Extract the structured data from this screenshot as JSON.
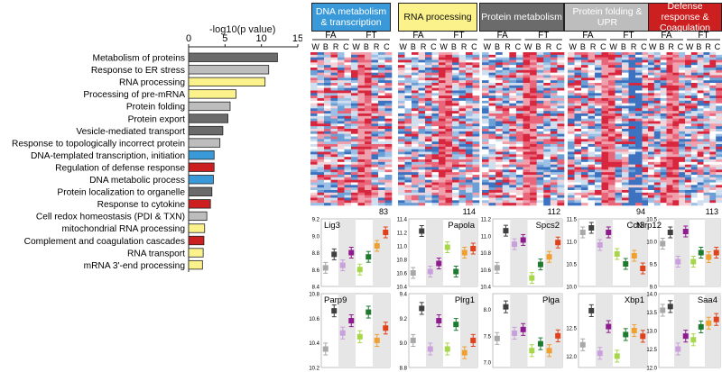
{
  "bar_chart": {
    "type": "bar",
    "orientation": "horizontal",
    "xlabel": "-log10(p value)",
    "xticks": [
      "0",
      "5",
      "10",
      "15"
    ],
    "xlim": [
      0,
      15
    ],
    "categories": [
      "Metabolism of proteins",
      "Response to ER stress",
      "RNA processing",
      "Processing of pre-mRNA",
      "Protein folding",
      "Protein export",
      "Vesicle-mediated transport",
      "Response to topologically incorrect protein",
      "DNA-templated transcription, initiation",
      "Regulation of defense response",
      "DNA metabolic process",
      "Protein localization to organelle",
      "Response to cytokine",
      "Cell redox homeostasis (PDI & TXN)",
      "mitochondrial RNA processing",
      "Complement and coagulation cascades",
      "RNA transport",
      "mRNA 3'-end processing"
    ],
    "values": [
      12.2,
      11.0,
      10.5,
      6.5,
      5.7,
      5.4,
      4.7,
      4.3,
      3.5,
      3.5,
      3.4,
      3.2,
      3.0,
      2.5,
      2.2,
      2.1,
      2.0,
      1.9
    ],
    "bar_colors": [
      "#6b6b6b",
      "#bdbdbd",
      "#fbf28c",
      "#fbf28c",
      "#bdbdbd",
      "#6b6b6b",
      "#6b6b6b",
      "#bdbdbd",
      "#3a9ad9",
      "#cc1f1f",
      "#3a9ad9",
      "#6b6b6b",
      "#cc1f1f",
      "#bdbdbd",
      "#fbf28c",
      "#cc1f1f",
      "#fbf28c",
      "#fbf28c"
    ]
  },
  "heatmaps": [
    {
      "title": "DNA metabolism & transcription",
      "color": "#3a9ad9",
      "count": "83"
    },
    {
      "title": "RNA processing",
      "color": "#fbf28c",
      "count": "114"
    },
    {
      "title": "Protein metabolism",
      "color": "#6b6b6b",
      "count": "112"
    },
    {
      "title": "Protein folding & UPR",
      "color": "#bdbdbd",
      "count": "94"
    },
    {
      "title": "Defense response & Coagulation",
      "color": "#cc1f1f",
      "count": "113"
    }
  ],
  "heatmap_labels": {
    "group1": "FA",
    "group2": "FT",
    "tissues": [
      "W",
      "B",
      "R",
      "C"
    ]
  },
  "gene_panels": [
    {
      "gene": "Lig3",
      "yticks": [
        "9.2",
        "9.0",
        "8.8",
        "8.6",
        "8.4"
      ],
      "ylim": [
        8.4,
        9.2
      ],
      "values": [
        8.62,
        8.78,
        8.65,
        8.8,
        8.6,
        8.75,
        8.88,
        9.04
      ]
    },
    {
      "gene": "Papola",
      "yticks": [
        "11.4",
        "11.2",
        "11.0",
        "10.8",
        "10.6",
        "10.4"
      ],
      "ylim": [
        10.4,
        11.4
      ],
      "values": [
        10.6,
        11.22,
        10.62,
        10.74,
        10.98,
        10.62,
        10.9,
        10.96
      ]
    },
    {
      "gene": "Spcs2",
      "yticks": [
        "11.2",
        "11.0",
        "10.8",
        "10.6",
        "10.4"
      ],
      "ylim": [
        10.4,
        11.2
      ],
      "values": [
        10.62,
        11.06,
        10.9,
        10.95,
        10.5,
        10.66,
        10.75,
        10.92
      ]
    },
    {
      "gene": "Cct3",
      "yticks": [
        "11.5",
        "11.0",
        "10.5",
        "10.0"
      ],
      "ylim": [
        10.0,
        11.5
      ],
      "values": [
        11.2,
        11.3,
        10.92,
        11.2,
        10.72,
        10.5,
        10.68,
        10.4
      ]
    },
    {
      "gene": "Nlrp12",
      "yticks": [
        "10.5",
        "10.0",
        "9.5",
        "9.0"
      ],
      "ylim": [
        9.0,
        10.5
      ],
      "values": [
        9.95,
        10.2,
        9.55,
        10.22,
        9.55,
        9.75,
        9.65,
        9.75
      ]
    },
    {
      "gene": "Parp9",
      "yticks": [
        "10.8",
        "10.6",
        "10.4",
        "10.2"
      ],
      "ylim": [
        10.2,
        10.8
      ],
      "values": [
        10.35,
        10.66,
        10.48,
        10.58,
        10.45,
        10.65,
        10.42,
        10.52
      ]
    },
    {
      "gene": "Plrg1",
      "yticks": [
        "9.4",
        "9.2",
        "9.0",
        "8.8"
      ],
      "ylim": [
        8.8,
        9.4
      ],
      "values": [
        9.02,
        9.28,
        8.95,
        9.18,
        8.95,
        9.15,
        8.92,
        9.02
      ]
    },
    {
      "gene": "Plga",
      "yticks": [
        "8.0",
        "7.5",
        "7.0"
      ],
      "ylim": [
        6.9,
        8.3
      ],
      "values": [
        7.45,
        8.05,
        7.55,
        7.62,
        7.22,
        7.35,
        7.22,
        7.5
      ]
    },
    {
      "gene": "Xbp1",
      "yticks": [
        "12.5",
        "12.0"
      ],
      "ylim": [
        11.8,
        13.1
      ],
      "values": [
        12.2,
        12.8,
        12.05,
        12.52,
        12.0,
        12.38,
        12.45,
        12.35
      ]
    },
    {
      "gene": "Saa4",
      "yticks": [
        "14.0",
        "13.5",
        "13.0",
        "12.5",
        "12.0"
      ],
      "ylim": [
        12.0,
        14.0
      ],
      "values": [
        13.55,
        13.65,
        12.5,
        12.85,
        12.75,
        13.1,
        13.2,
        13.3
      ]
    }
  ],
  "point_colors": [
    "#a8a8a8",
    "#3f3f3f",
    "#c9a0dc",
    "#8e1a8e",
    "#a8d64a",
    "#1f7a30",
    "#f0a030",
    "#e0401a"
  ]
}
